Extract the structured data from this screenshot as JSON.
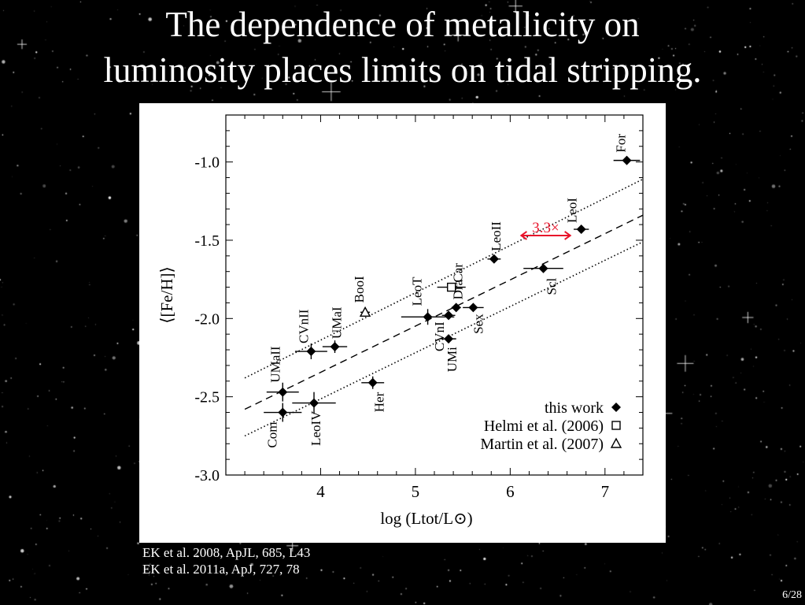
{
  "slide": {
    "title_line1": "The dependence of metallicity on",
    "title_line2": "luminosity places limits on tidal stripping.",
    "references": [
      "EK et al. 2008, ApJL, 685, L43",
      "EK et al. 2011a, ApJ, 727, 78"
    ],
    "page_number": "6/28"
  },
  "colors": {
    "background": "#000000",
    "panel": "#ffffff",
    "ink": "#000000",
    "annotation": "#e8132a"
  },
  "chart_data": {
    "type": "scatter",
    "title": "",
    "xlabel": "log (Ltot/L⊙)",
    "ylabel": "⟨[Fe/H]⟩",
    "xlim": [
      3.0,
      7.4
    ],
    "ylim": [
      -3.0,
      -0.7
    ],
    "xticks": [
      4,
      5,
      6,
      7
    ],
    "xtick_labels": [
      "4",
      "5",
      "6",
      "7"
    ],
    "yticks": [
      -1.0,
      -1.5,
      -2.0,
      -2.5,
      -3.0
    ],
    "ytick_labels": [
      "-1.0",
      "-1.5",
      "-2.0",
      "-2.5",
      "-3.0"
    ],
    "grid": false,
    "legend_position": "bottom-right",
    "legend": [
      {
        "label": "this work",
        "marker": "diamond"
      },
      {
        "label": "Helmi et al. (2006)",
        "marker": "square"
      },
      {
        "label": "Martin et al. (2007)",
        "marker": "triangle"
      }
    ],
    "series": [
      {
        "name": "this work",
        "marker": "diamond",
        "points": [
          {
            "label": "Com",
            "x": 3.6,
            "y": -2.6,
            "xerr": 0.2,
            "yerr": 0.06
          },
          {
            "label": "UMaII",
            "x": 3.6,
            "y": -2.47,
            "xerr": 0.17,
            "yerr": 0.06
          },
          {
            "label": "CVnII",
            "x": 3.9,
            "y": -2.21,
            "xerr": 0.17,
            "yerr": 0.05
          },
          {
            "label": "UMaI",
            "x": 4.15,
            "y": -2.18,
            "xerr": 0.13,
            "yerr": 0.04
          },
          {
            "label": "LeoIV",
            "x": 3.93,
            "y": -2.54,
            "xerr": 0.23,
            "yerr": 0.07
          },
          {
            "label": "Her",
            "x": 4.55,
            "y": -2.41,
            "xerr": 0.12,
            "yerr": 0.04
          },
          {
            "label": "LeoT",
            "x": 5.13,
            "y": -1.99,
            "xerr": 0.28,
            "yerr": 0.05
          },
          {
            "label": "CVnI",
            "x": 5.35,
            "y": -1.98,
            "xerr": 0.07,
            "yerr": 0.01
          },
          {
            "label": "UMi",
            "x": 5.35,
            "y": -2.13,
            "xerr": 0.08,
            "yerr": 0.01
          },
          {
            "label": "Dra",
            "x": 5.43,
            "y": -1.93,
            "xerr": 0.05,
            "yerr": 0.01
          },
          {
            "label": "Sex",
            "x": 5.61,
            "y": -1.93,
            "xerr": 0.11,
            "yerr": 0.01
          },
          {
            "label": "LeoII",
            "x": 5.83,
            "y": -1.62,
            "xerr": 0.07,
            "yerr": 0.01
          },
          {
            "label": "Scl",
            "x": 6.35,
            "y": -1.68,
            "xerr": 0.21,
            "yerr": 0.01
          },
          {
            "label": "LeoI",
            "x": 6.75,
            "y": -1.43,
            "xerr": 0.08,
            "yerr": 0.01
          },
          {
            "label": "For",
            "x": 7.23,
            "y": -0.99,
            "xerr": 0.14,
            "yerr": 0.01
          }
        ]
      },
      {
        "name": "Helmi et al. (2006)",
        "marker": "square",
        "points": [
          {
            "label": "Car",
            "x": 5.38,
            "y": -1.8,
            "xerr": 0.15,
            "yerr": 0.0
          }
        ]
      },
      {
        "name": "Martin et al. (2007)",
        "marker": "triangle",
        "points": [
          {
            "label": "BooI",
            "x": 4.47,
            "y": -1.96,
            "xerr": 0.05,
            "yerr": 0.0
          }
        ]
      }
    ],
    "fit_lines": [
      {
        "style": "dashed",
        "x": [
          3.2,
          7.4
        ],
        "y": [
          -2.58,
          -1.34
        ]
      },
      {
        "style": "dotted",
        "x": [
          3.2,
          7.4
        ],
        "y": [
          -2.38,
          -1.11
        ]
      },
      {
        "style": "dotted",
        "x": [
          3.2,
          7.4
        ],
        "y": [
          -2.75,
          -1.51
        ]
      }
    ],
    "annotation": {
      "text": "3.3×",
      "x_from": 6.1,
      "x_to": 6.65,
      "y": -1.5
    }
  }
}
